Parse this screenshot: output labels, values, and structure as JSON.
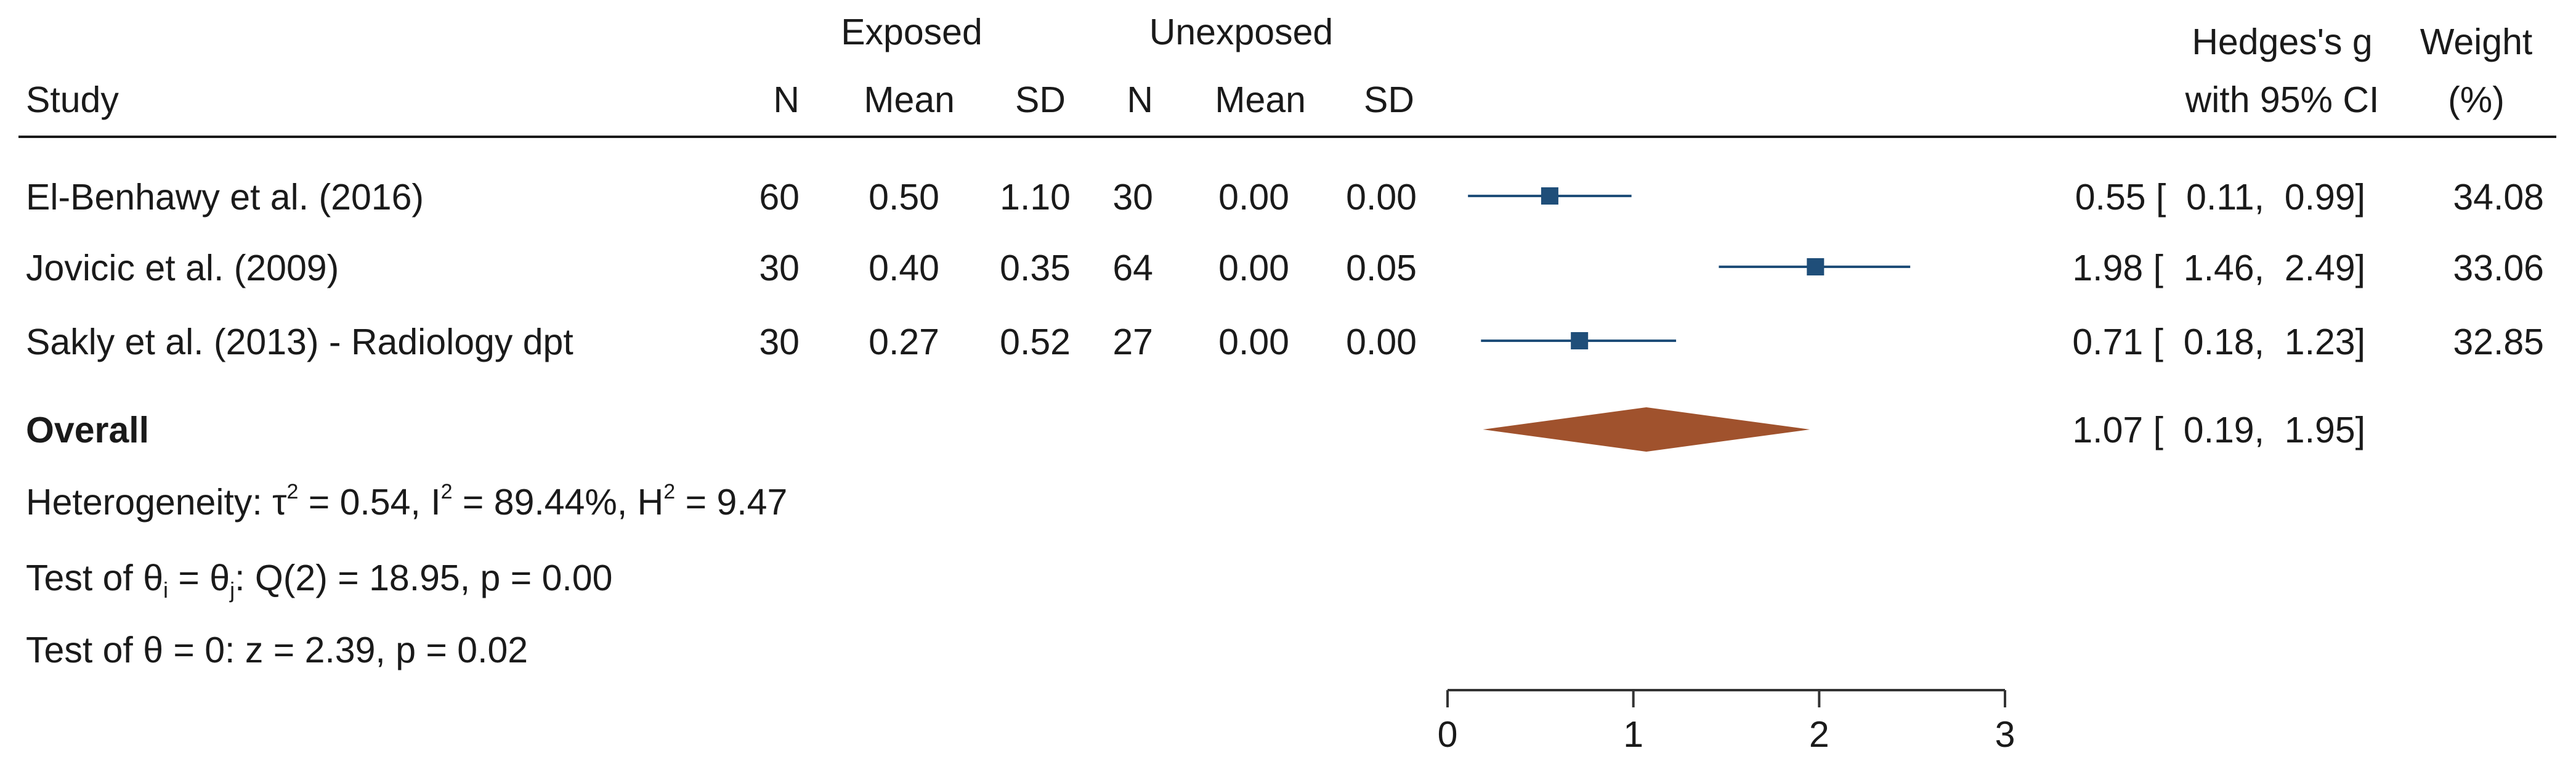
{
  "chart_data": {
    "type": "forest",
    "group_headers": {
      "exposed": "Exposed",
      "unexposed": "Unexposed"
    },
    "columns": {
      "study": "Study",
      "n": "N",
      "mean": "Mean",
      "sd": "SD",
      "effect_line1": "Hedges's g",
      "effect_line2": "with 95% CI",
      "weight_line1": "Weight",
      "weight_line2": "(%)"
    },
    "studies": [
      {
        "name": "El-Benhawy et al. (2016)",
        "exp_n": "60",
        "exp_mean": "0.50",
        "exp_sd": "1.10",
        "unexp_n": "30",
        "unexp_mean": "0.00",
        "unexp_sd": "0.00",
        "g": 0.55,
        "lo": 0.11,
        "hi": 0.99,
        "ci_text": "0.55 [  0.11,  0.99]",
        "weight": "34.08"
      },
      {
        "name": "Jovicic et al. (2009)",
        "exp_n": "30",
        "exp_mean": "0.40",
        "exp_sd": "0.35",
        "unexp_n": "64",
        "unexp_mean": "0.00",
        "unexp_sd": "0.05",
        "g": 1.98,
        "lo": 1.46,
        "hi": 2.49,
        "ci_text": "1.98 [  1.46,  2.49]",
        "weight": "33.06"
      },
      {
        "name": "Sakly et al. (2013) - Radiology dpt",
        "exp_n": "30",
        "exp_mean": "0.27",
        "exp_sd": "0.52",
        "unexp_n": "27",
        "unexp_mean": "0.00",
        "unexp_sd": "0.00",
        "g": 0.71,
        "lo": 0.18,
        "hi": 1.23,
        "ci_text": "0.71 [  0.18,  1.23]",
        "weight": "32.85"
      }
    ],
    "overall": {
      "label": "Overall",
      "g": 1.07,
      "lo": 0.19,
      "hi": 1.95,
      "ci_text": "1.07 [  0.19,  1.95]"
    },
    "heterogeneity": {
      "prefix": "Heterogeneity: τ",
      "tau_sup": "2",
      "tau_val": " = 0.54, I",
      "i_sup": "2",
      "i_val": " = 89.44%, H",
      "h_sup": "2",
      "h_val": " = 9.47"
    },
    "test_homogeneity": {
      "part1": "Test of θ",
      "sub_i": "i",
      "part2": " = θ",
      "sub_j": "j",
      "part3": ": Q(2) = 18.95, p = 0.00"
    },
    "test_zero": "Test of θ = 0: z = 2.39, p = 0.02",
    "x_axis": {
      "min": 0,
      "max": 3,
      "ticks": [
        "0",
        "1",
        "2",
        "3"
      ]
    },
    "colors": {
      "study_marker": "#1f4e79",
      "overall_diamond": "#a0522d",
      "text": "#1a1a1a",
      "axis": "#333333"
    }
  }
}
